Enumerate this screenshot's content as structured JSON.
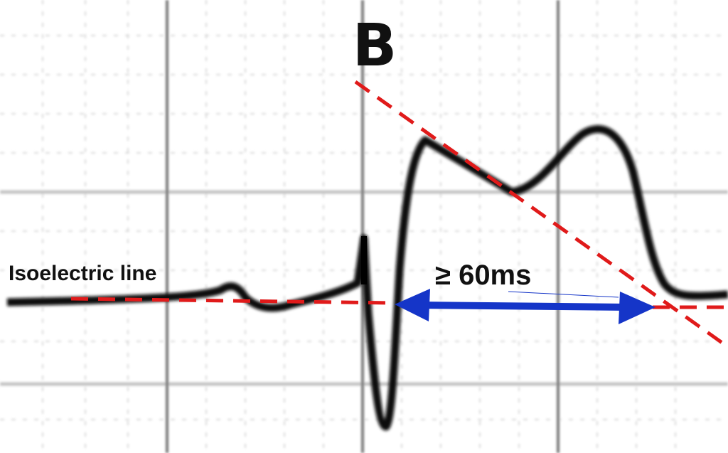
{
  "panel_label": "B",
  "annotations": {
    "baseline": "Isoelectric line",
    "duration": "≥ 60ms"
  }
}
